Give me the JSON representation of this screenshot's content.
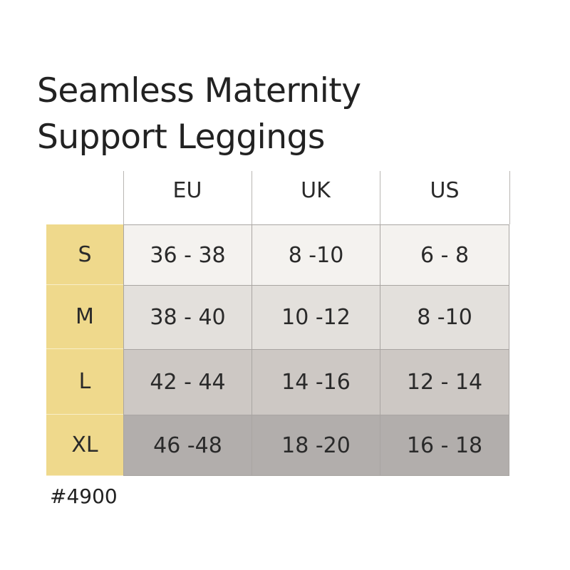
{
  "title": {
    "lines": [
      "Seamless Maternity",
      "Support Leggings"
    ]
  },
  "table": {
    "columns": [
      "EU",
      "UK",
      "US"
    ],
    "rows": [
      {
        "size": "S",
        "cells": [
          "36 - 38",
          "8 -10",
          "6 - 8"
        ]
      },
      {
        "size": "M",
        "cells": [
          "38 - 40",
          "10 -12",
          "8 -10"
        ]
      },
      {
        "size": "L",
        "cells": [
          "42 - 44",
          "14 -16",
          "12 - 14"
        ]
      },
      {
        "size": "XL",
        "cells": [
          "46 -48",
          "18 -20",
          "16 - 18"
        ]
      }
    ]
  },
  "footer": {
    "code": "#4900"
  }
}
